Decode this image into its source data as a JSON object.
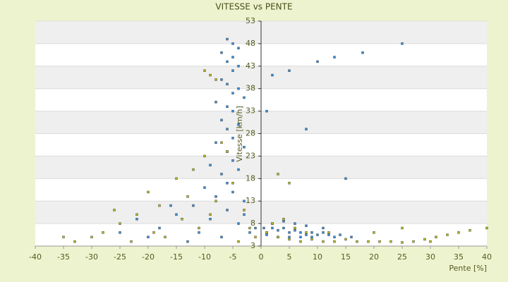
{
  "chart_data": {
    "type": "scatter",
    "title": "VITESSE vs PENTE",
    "x_label": "Pente [%]",
    "y_label": "Vitesse [km/h]",
    "xlim": [
      -40,
      40
    ],
    "xticks": [
      -40,
      -35,
      -30,
      -25,
      -20,
      -15,
      -10,
      -5,
      0,
      5,
      10,
      15,
      20,
      25,
      30,
      35,
      40
    ],
    "ylim": [
      3,
      53
    ],
    "yticks": [
      3,
      8,
      13,
      18,
      23,
      28,
      33,
      38,
      43,
      48,
      53
    ],
    "grid": true,
    "series": [
      {
        "color": "#3a8fd9",
        "x": [
          -6,
          -5,
          -4,
          -7,
          -5,
          -6,
          -4,
          -5,
          -7,
          -6,
          -4,
          -5,
          -3,
          -8,
          -6,
          -5,
          -7,
          -4,
          -6,
          -5,
          -8,
          -3,
          -6,
          -5,
          -9,
          -4,
          -7,
          -6,
          -10,
          -5,
          -8,
          -3,
          -12,
          -6,
          -15,
          -9,
          -4,
          -18,
          -11,
          -7,
          -20,
          -13,
          -2,
          -22,
          -16,
          -25,
          -3,
          -1,
          0.5,
          1,
          2,
          3,
          4,
          5,
          6,
          7,
          8,
          9,
          10,
          11,
          12,
          13,
          14,
          2,
          4,
          6,
          8,
          3,
          5,
          7,
          9,
          1,
          5,
          10,
          13,
          18,
          25,
          2,
          8,
          15,
          1,
          11,
          16
        ],
        "values": [
          49,
          48,
          47,
          46,
          45,
          44,
          43,
          42,
          40,
          39,
          38,
          37,
          36,
          35,
          34,
          33,
          31,
          30,
          29,
          27,
          26,
          25,
          24,
          22,
          21,
          20,
          19,
          17,
          16,
          15,
          14,
          13,
          12,
          11,
          10,
          9,
          8,
          7,
          6,
          5,
          5,
          4,
          6,
          9,
          12,
          6,
          10,
          7,
          7,
          6,
          7,
          6.5,
          7,
          6,
          6.5,
          6,
          5.5,
          6,
          5.5,
          6,
          5.5,
          5,
          5.5,
          8,
          8.5,
          8,
          7.5,
          5,
          5,
          5,
          5,
          5.5,
          42,
          44,
          45,
          46,
          48,
          41,
          29,
          18,
          33,
          7,
          5
        ]
      },
      {
        "color": "#b8b820",
        "x": [
          -10,
          -9,
          -8,
          -7,
          -6,
          -10,
          -12,
          -15,
          -20,
          -18,
          -22,
          -25,
          -28,
          -30,
          -33,
          -35,
          -14,
          -11,
          -17,
          -23,
          -8,
          -5,
          -3,
          -2,
          -1,
          -13,
          -26,
          -19,
          -9,
          -4,
          1,
          3,
          5,
          7,
          9,
          11,
          13,
          15,
          17,
          19,
          21,
          23,
          25,
          27,
          29,
          31,
          33,
          35,
          37,
          40,
          2,
          4,
          6,
          8,
          12,
          20,
          3,
          5,
          25,
          30
        ],
        "values": [
          42,
          41,
          40,
          26,
          24,
          23,
          20,
          18,
          15,
          12,
          10,
          8,
          6,
          5,
          4,
          5,
          9,
          7,
          5,
          4,
          13,
          17,
          11,
          7,
          5,
          14,
          11,
          6,
          10,
          4,
          6,
          5,
          4.5,
          4,
          4.5,
          4,
          4,
          4.5,
          4,
          4,
          4,
          4,
          3.8,
          4,
          4.5,
          5,
          5.5,
          6,
          6.5,
          7,
          8,
          9,
          7,
          6,
          6,
          6,
          19,
          17,
          7,
          4
        ]
      }
    ]
  }
}
